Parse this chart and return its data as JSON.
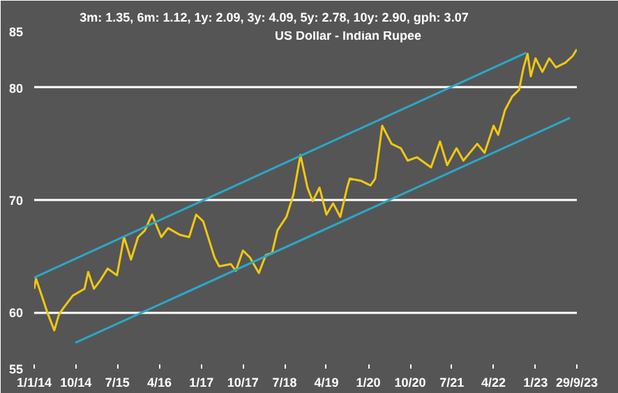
{
  "chart_data": {
    "type": "line",
    "title": "US Dollar - Indian Rupee",
    "annotations": [
      "3m: 1.35,    6m: 1.12,    1y: 2.09,    3y: 4.09,    5y: 2.78,    10y: 2.90,    gph: 3.07"
    ],
    "xlim": [
      "2014-01-01",
      "2023-09-29"
    ],
    "xticks": [
      {
        "value": "2014-01-01",
        "label": "1/1/14"
      },
      {
        "value": "2014-10-01",
        "label": "10/14"
      },
      {
        "value": "2015-07-01",
        "label": "7/15"
      },
      {
        "value": "2016-04-01",
        "label": "4/16"
      },
      {
        "value": "2017-01-01",
        "label": "1/17"
      },
      {
        "value": "2017-10-01",
        "label": "10/17"
      },
      {
        "value": "2018-07-01",
        "label": "7/18"
      },
      {
        "value": "2019-04-01",
        "label": "4/19"
      },
      {
        "value": "2020-01-01",
        "label": "1/20"
      },
      {
        "value": "2020-10-01",
        "label": "10/20"
      },
      {
        "value": "2021-07-01",
        "label": "7/21"
      },
      {
        "value": "2022-04-01",
        "label": "4/22"
      },
      {
        "value": "2023-01-01",
        "label": "1/23"
      },
      {
        "value": "2023-09-29",
        "label": "29/9/23"
      }
    ],
    "ylim": [
      55,
      85
    ],
    "yticks": [
      55,
      60,
      70,
      80,
      85
    ],
    "grid": "y",
    "series": [
      {
        "color": "#f2c80f",
        "x": [
          "2014-01-01",
          "2014-01-13",
          "2014-02-12",
          "2014-03-28",
          "2014-05-13",
          "2014-06-12",
          "2014-07-12",
          "2014-09-12",
          "2014-11-27",
          "2014-12-21",
          "2015-01-28",
          "2015-03-13",
          "2015-04-28",
          "2015-06-28",
          "2015-08-13",
          "2015-09-28",
          "2015-11-13",
          "2015-12-28",
          "2016-02-13",
          "2016-04-13",
          "2016-05-28",
          "2016-08-13",
          "2016-10-13",
          "2016-11-28",
          "2017-01-13",
          "2017-03-28",
          "2017-04-28",
          "2017-07-13",
          "2017-08-15",
          "2017-10-01",
          "2017-11-15",
          "2018-01-13",
          "2018-02-28",
          "2018-04-10",
          "2018-05-15",
          "2018-07-13",
          "2018-08-28",
          "2018-10-13",
          "2018-11-28",
          "2019-01-01",
          "2019-02-15",
          "2019-04-01",
          "2019-05-15",
          "2019-07-01",
          "2019-08-15",
          "2019-09-01",
          "2019-11-15",
          "2020-01-15",
          "2020-02-15",
          "2020-04-01",
          "2020-06-01",
          "2020-08-01",
          "2020-09-15",
          "2020-11-15",
          "2021-02-15",
          "2021-04-15",
          "2021-06-01",
          "2021-08-01",
          "2021-09-15",
          "2021-12-15",
          "2022-02-01",
          "2022-04-01",
          "2022-05-01",
          "2022-06-15",
          "2022-08-01",
          "2022-09-15",
          "2022-10-15",
          "2022-11-10",
          "2022-12-01",
          "2023-01-01",
          "2023-02-15",
          "2023-04-01",
          "2023-05-15",
          "2023-07-15",
          "2023-09-01",
          "2023-09-29"
        ],
        "values": [
          62.1,
          63.0,
          61.8,
          60.0,
          58.4,
          59.8,
          60.4,
          61.5,
          62.1,
          63.6,
          62.1,
          62.9,
          63.9,
          63.3,
          66.7,
          64.7,
          66.7,
          67.3,
          68.7,
          66.7,
          67.5,
          66.9,
          66.7,
          68.7,
          68.1,
          64.9,
          64.1,
          64.3,
          63.7,
          65.5,
          64.9,
          63.5,
          65.1,
          65.3,
          67.3,
          68.5,
          70.5,
          74.0,
          71.1,
          69.9,
          71.1,
          68.7,
          69.7,
          68.5,
          71.1,
          71.9,
          71.7,
          71.3,
          71.9,
          76.6,
          75.0,
          74.6,
          73.5,
          73.8,
          72.9,
          75.2,
          73.1,
          74.6,
          73.5,
          75.0,
          74.2,
          76.6,
          75.8,
          78.0,
          79.2,
          79.8,
          81.8,
          83.0,
          81.0,
          82.6,
          81.4,
          82.6,
          81.8,
          82.2,
          82.8,
          83.4
        ]
      },
      {
        "color": "#2aa8c8",
        "x": [
          "2014-01-01",
          "2022-11-01"
        ],
        "values": [
          63.1,
          83.1
        ]
      },
      {
        "color": "#2aa8c8",
        "x": [
          "2014-09-28",
          "2023-08-15"
        ],
        "values": [
          57.3,
          77.3
        ]
      }
    ]
  }
}
